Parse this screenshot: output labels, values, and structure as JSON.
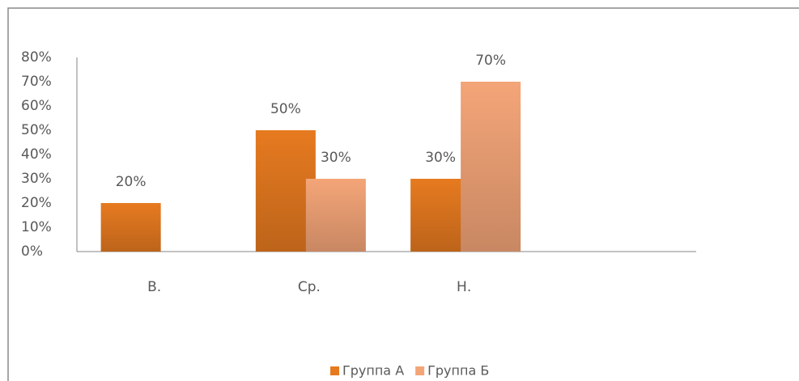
{
  "chart_data": {
    "type": "bar",
    "categories": [
      "В.",
      "Ср.",
      "Н.",
      null
    ],
    "series": [
      {
        "name": "Группа А",
        "color": "#e67a20",
        "values": [
          20,
          50,
          30,
          null
        ],
        "value_labels": [
          "20%",
          "50%",
          "30%",
          null
        ]
      },
      {
        "name": "Группа Б",
        "color": "#f4a578",
        "values": [
          null,
          30,
          70,
          null
        ],
        "value_labels": [
          null,
          "30%",
          "70%",
          null
        ]
      }
    ],
    "ylim": [
      0,
      80
    ],
    "yticks": [
      {
        "value": 0,
        "label": "0%"
      },
      {
        "value": 10,
        "label": "10%"
      },
      {
        "value": 20,
        "label": "20%"
      },
      {
        "value": 30,
        "label": "30%"
      },
      {
        "value": 40,
        "label": "40%"
      },
      {
        "value": 50,
        "label": "50%"
      },
      {
        "value": 60,
        "label": "60%"
      },
      {
        "value": 70,
        "label": "70%"
      },
      {
        "value": 80,
        "label": "80%"
      }
    ],
    "grid": false,
    "legend": "bottom"
  }
}
